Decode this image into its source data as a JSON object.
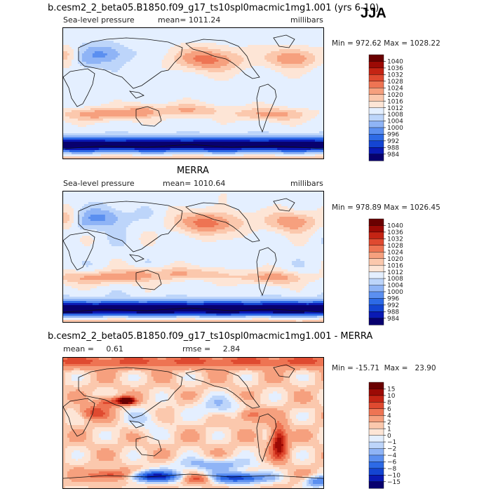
{
  "season": "JJA",
  "panels": [
    {
      "id": "model",
      "title": "b.cesm2_2_beta05.B1850.f09_g17_ts10spl0macmic1mg1.001 (yrs 6-10)",
      "variable": "Sea-level pressure",
      "mean_text": "mean= 1011.24",
      "units": "millibars",
      "minmax": "Min = 972.62  Max = 1028.22",
      "colorbar_labels": [
        "1040",
        "1036",
        "1032",
        "1028",
        "1024",
        "1020",
        "1016",
        "1012",
        "1008",
        "1004",
        "1000",
        "996",
        "992",
        "988",
        "984"
      ]
    },
    {
      "id": "obs",
      "title": "MERRA",
      "variable": "Sea-level pressure",
      "mean_text": "mean= 1010.64",
      "units": "millibars",
      "minmax": "Min = 978.89  Max = 1026.45",
      "colorbar_labels": [
        "1040",
        "1036",
        "1032",
        "1028",
        "1024",
        "1020",
        "1016",
        "1012",
        "1008",
        "1004",
        "1000",
        "996",
        "992",
        "988",
        "984"
      ]
    },
    {
      "id": "diff",
      "title": "b.cesm2_2_beta05.B1850.f09_g17_ts10spl0macmic1mg1.001 - MERRA",
      "mean_text": "mean =     0.61",
      "rmse_text": "rmse =     2.84",
      "minmax": "Min = -15.71  Max =   23.90",
      "colorbar_labels": [
        "15",
        "10",
        "8",
        "6",
        "4",
        "2",
        "1",
        "0",
        "−1",
        "−2",
        "−4",
        "−6",
        "−8",
        "−10",
        "−15"
      ]
    }
  ],
  "chart_data": [
    {
      "type": "heatmap",
      "title": "b.cesm2_2_beta05.B1850.f09_g17_ts10spl0macmic1mg1.001 (yrs 6-10)",
      "variable": "Sea-level pressure",
      "units": "millibars",
      "mean": 1011.24,
      "min": 972.62,
      "max": 1028.22,
      "levels": [
        984,
        988,
        992,
        996,
        1000,
        1004,
        1008,
        1012,
        1016,
        1020,
        1024,
        1028,
        1032,
        1036,
        1040
      ],
      "colors": [
        "#08006e",
        "#0a1ab4",
        "#1445d2",
        "#2d6ae6",
        "#5b8ff0",
        "#8fb4f6",
        "#bdd5fa",
        "#e4efff",
        "#fde5d6",
        "#fbc8ad",
        "#f6a07e",
        "#ee7453",
        "#df4a30",
        "#c42414",
        "#9c0a05",
        "#6a0000"
      ]
    },
    {
      "type": "heatmap",
      "title": "MERRA",
      "variable": "Sea-level pressure",
      "units": "millibars",
      "mean": 1010.64,
      "min": 978.89,
      "max": 1026.45,
      "levels": [
        984,
        988,
        992,
        996,
        1000,
        1004,
        1008,
        1012,
        1016,
        1020,
        1024,
        1028,
        1032,
        1036,
        1040
      ],
      "colors": [
        "#08006e",
        "#0a1ab4",
        "#1445d2",
        "#2d6ae6",
        "#5b8ff0",
        "#8fb4f6",
        "#bdd5fa",
        "#e4efff",
        "#fde5d6",
        "#fbc8ad",
        "#f6a07e",
        "#ee7453",
        "#df4a30",
        "#c42414",
        "#9c0a05",
        "#6a0000"
      ]
    },
    {
      "type": "heatmap",
      "title": "b.cesm2_2_beta05.B1850.f09_g17_ts10spl0macmic1mg1.001 - MERRA",
      "mean": 0.61,
      "rmse": 2.84,
      "min": -15.71,
      "max": 23.9,
      "levels": [
        -15,
        -10,
        -8,
        -6,
        -4,
        -2,
        -1,
        0,
        1,
        2,
        4,
        6,
        8,
        10,
        15
      ],
      "colors": [
        "#08006e",
        "#0a1ab4",
        "#1445d2",
        "#2d6ae6",
        "#5b8ff0",
        "#8fb4f6",
        "#bdd5fa",
        "#e4efff",
        "#fde5d6",
        "#fbc8ad",
        "#f6a07e",
        "#ee7453",
        "#df4a30",
        "#c42414",
        "#9c0a05",
        "#6a0000"
      ]
    }
  ]
}
